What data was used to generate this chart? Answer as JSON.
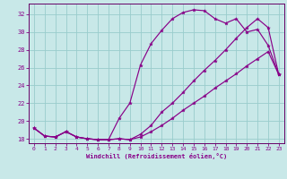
{
  "xlabel": "Windchill (Refroidissement éolien,°C)",
  "xlim": [
    -0.5,
    23.5
  ],
  "ylim": [
    17.5,
    33.2
  ],
  "xticks": [
    0,
    1,
    2,
    3,
    4,
    5,
    6,
    7,
    8,
    9,
    10,
    11,
    12,
    13,
    14,
    15,
    16,
    17,
    18,
    19,
    20,
    21,
    22,
    23
  ],
  "yticks": [
    18,
    20,
    22,
    24,
    26,
    28,
    30,
    32
  ],
  "background_color": "#c8e8e8",
  "grid_color": "#99cccc",
  "line_color": "#880088",
  "spine_color": "#660066",
  "curve1_x": [
    0,
    1,
    2,
    3,
    4,
    5,
    6,
    7,
    8,
    9,
    10,
    11,
    12,
    13,
    14,
    15,
    16,
    17,
    18,
    19,
    20,
    21,
    22,
    23
  ],
  "curve1_y": [
    19.2,
    18.3,
    18.2,
    18.8,
    18.2,
    18.0,
    17.9,
    17.9,
    20.3,
    22.0,
    26.3,
    28.7,
    30.2,
    31.5,
    32.2,
    32.5,
    32.4,
    31.5,
    31.0,
    31.5,
    30.0,
    30.3,
    28.5,
    25.2
  ],
  "curve2_x": [
    0,
    1,
    2,
    3,
    4,
    5,
    6,
    7,
    8,
    9,
    10,
    11,
    12,
    13,
    14,
    15,
    16,
    17,
    18,
    19,
    20,
    21,
    22,
    23
  ],
  "curve2_y": [
    19.2,
    18.3,
    18.2,
    18.8,
    18.2,
    18.0,
    17.9,
    17.9,
    18.0,
    17.9,
    18.5,
    19.5,
    21.0,
    22.0,
    23.2,
    24.5,
    25.7,
    26.8,
    28.0,
    29.3,
    30.5,
    31.5,
    30.5,
    25.2
  ],
  "curve3_x": [
    0,
    1,
    2,
    3,
    4,
    5,
    6,
    7,
    8,
    9,
    10,
    11,
    12,
    13,
    14,
    15,
    16,
    17,
    18,
    19,
    20,
    21,
    22,
    23
  ],
  "curve3_y": [
    19.2,
    18.3,
    18.2,
    18.8,
    18.2,
    18.0,
    17.9,
    17.9,
    18.0,
    17.9,
    18.2,
    18.8,
    19.5,
    20.3,
    21.2,
    22.0,
    22.8,
    23.7,
    24.5,
    25.3,
    26.2,
    27.0,
    27.8,
    25.2
  ]
}
